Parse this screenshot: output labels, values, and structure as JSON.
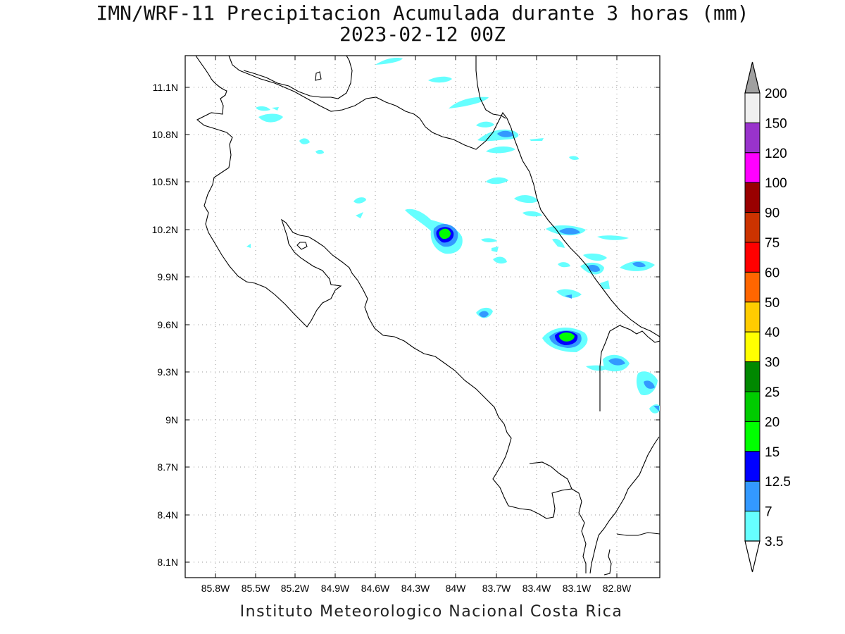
{
  "title_line1": "IMN/WRF-11 Precipitacion Acumulada durante 3 horas (mm)",
  "title_line2": "2023-02-12 00Z",
  "footer": "Instituto Meteorologico Nacional Costa Rica",
  "map": {
    "lon_ticks": [
      "85.8W",
      "85.5W",
      "85.2W",
      "84.9W",
      "84.6W",
      "84.3W",
      "84W",
      "83.7W",
      "83.4W",
      "83.1W",
      "82.8W"
    ],
    "lat_ticks": [
      "11.1N",
      "10.8N",
      "10.5N",
      "10.2N",
      "9.9N",
      "9.6N",
      "9.3N",
      "9N",
      "8.7N",
      "8.4N",
      "8.1N"
    ]
  },
  "legend": {
    "labels": [
      "200",
      "150",
      "120",
      "100",
      "90",
      "75",
      "60",
      "50",
      "40",
      "30",
      "25",
      "20",
      "15",
      "12.5",
      "7",
      "3.5"
    ],
    "colors": [
      "#f0f0f0",
      "#9933cc",
      "#ff00ff",
      "#990000",
      "#cc3300",
      "#ff0000",
      "#ff6600",
      "#ffcc00",
      "#ffff00",
      "#008800",
      "#00cc00",
      "#00ff00",
      "#0000ff",
      "#3399ff",
      "#66ffff"
    ],
    "top_triangle_color": "#a0a0a0",
    "bottom_triangle_color": "#ffffff"
  }
}
